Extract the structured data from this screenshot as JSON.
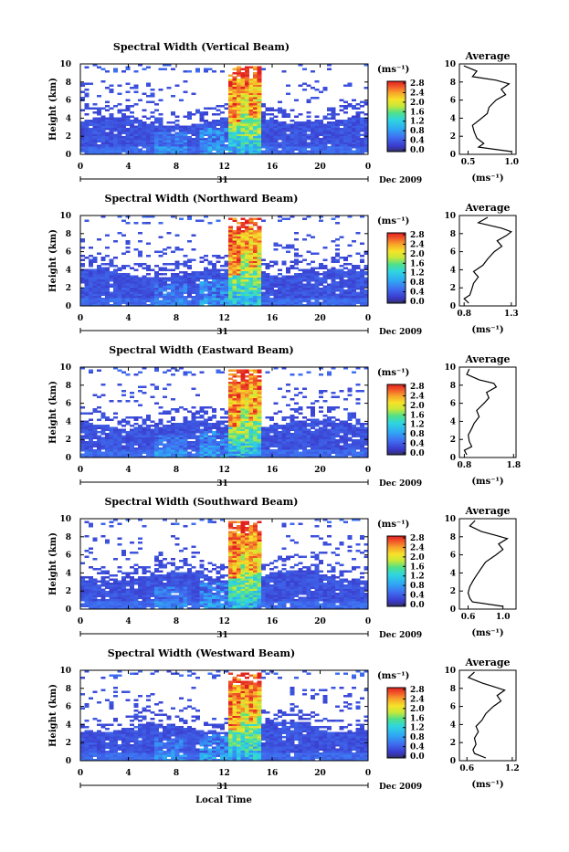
{
  "x_label": "Local Time",
  "y_label": "Height (km)",
  "date_label": "Dec 2009",
  "day_label": "31",
  "colorbar_unit": "(ms⁻¹)",
  "profile_title": "Average",
  "profile_unit": "(ms⁻¹)",
  "colorbar_ticks": [
    "0.0",
    "0.4",
    "0.8",
    "1.2",
    "1.6",
    "2.0",
    "2.4",
    "2.8"
  ],
  "chart_data": [
    {
      "type": "heatmap",
      "title": "Spectral Width (Vertical Beam)",
      "x_ticks": [
        "0",
        "4",
        "8",
        "12",
        "16",
        "20",
        "0"
      ],
      "y_ticks": [
        "0",
        "2",
        "4",
        "6",
        "8",
        "10"
      ],
      "xlim": [
        0,
        24
      ],
      "ylim": [
        0,
        10
      ],
      "zlim": [
        0.0,
        2.8
      ],
      "profile": {
        "type": "line",
        "title": "Average",
        "x_ticks": [
          "0.5",
          "1.0"
        ],
        "xlim": [
          0.4,
          1.05
        ],
        "y_ticks": [
          "0",
          "2",
          "4",
          "6",
          "8",
          "10"
        ],
        "heights": [
          0.3,
          0.8,
          1.2,
          1.8,
          2.5,
          3.2,
          3.8,
          4.5,
          5.2,
          6.0,
          6.6,
          7.2,
          7.8,
          8.2,
          8.6,
          9.2,
          9.8
        ],
        "values": [
          1.0,
          0.62,
          0.68,
          0.6,
          0.57,
          0.55,
          0.63,
          0.72,
          0.74,
          0.82,
          0.93,
          0.88,
          0.97,
          0.82,
          0.55,
          0.6,
          0.45
        ]
      }
    },
    {
      "type": "heatmap",
      "title": "Spectral Width (Northward Beam)",
      "x_ticks": [
        "0",
        "4",
        "8",
        "12",
        "16",
        "20",
        "0"
      ],
      "y_ticks": [
        "0",
        "2",
        "4",
        "6",
        "8",
        "10"
      ],
      "xlim": [
        0,
        24
      ],
      "ylim": [
        0,
        10
      ],
      "zlim": [
        0.0,
        2.8
      ],
      "profile": {
        "type": "line",
        "title": "Average",
        "x_ticks": [
          "0.8",
          "1.3"
        ],
        "xlim": [
          0.75,
          1.35
        ],
        "y_ticks": [
          "0",
          "2",
          "4",
          "6",
          "8",
          "10"
        ],
        "heights": [
          0.3,
          0.8,
          1.2,
          1.8,
          2.5,
          3.2,
          3.8,
          4.5,
          5.2,
          6.0,
          6.6,
          7.2,
          7.8,
          8.2,
          8.6,
          9.2,
          9.8
        ],
        "values": [
          0.85,
          0.8,
          0.86,
          0.88,
          0.9,
          0.95,
          0.9,
          1.0,
          1.05,
          1.12,
          1.2,
          1.15,
          1.25,
          1.3,
          1.2,
          0.95,
          1.05
        ]
      }
    },
    {
      "type": "heatmap",
      "title": "Spectral Width (Eastward Beam)",
      "x_ticks": [
        "0",
        "4",
        "8",
        "12",
        "16",
        "20",
        "0"
      ],
      "y_ticks": [
        "0",
        "2",
        "4",
        "6",
        "8",
        "10"
      ],
      "xlim": [
        0,
        24
      ],
      "ylim": [
        0,
        10
      ],
      "zlim": [
        0.0,
        2.8
      ],
      "profile": {
        "type": "line",
        "title": "Average",
        "x_ticks": [
          "0.8",
          "1.8"
        ],
        "xlim": [
          0.7,
          1.85
        ],
        "y_ticks": [
          "0",
          "2",
          "4",
          "6",
          "8",
          "10"
        ],
        "heights": [
          0.3,
          0.8,
          1.2,
          1.8,
          2.5,
          3.2,
          3.8,
          4.5,
          5.2,
          6.0,
          6.6,
          7.2,
          7.8,
          8.2,
          8.6,
          9.2,
          9.8
        ],
        "values": [
          0.85,
          0.8,
          0.95,
          0.9,
          0.88,
          0.95,
          1.0,
          1.1,
          1.05,
          1.2,
          1.3,
          1.25,
          1.45,
          1.4,
          1.1,
          0.85,
          0.9
        ]
      }
    },
    {
      "type": "heatmap",
      "title": "Spectral Width (Southward Beam)",
      "x_ticks": [
        "0",
        "4",
        "8",
        "12",
        "16",
        "20",
        "0"
      ],
      "y_ticks": [
        "0",
        "2",
        "4",
        "6",
        "8",
        "10"
      ],
      "xlim": [
        0,
        24
      ],
      "ylim": [
        0,
        10
      ],
      "zlim": [
        0.0,
        2.8
      ],
      "profile": {
        "type": "line",
        "title": "Average",
        "x_ticks": [
          "0.6",
          "1.0"
        ],
        "xlim": [
          0.5,
          1.15
        ],
        "y_ticks": [
          "0",
          "2",
          "4",
          "6",
          "8",
          "10"
        ],
        "heights": [
          0.3,
          0.8,
          1.2,
          1.8,
          2.5,
          3.2,
          3.8,
          4.5,
          5.2,
          6.0,
          6.6,
          7.2,
          7.8,
          8.2,
          8.6,
          9.2,
          9.8
        ],
        "values": [
          1.0,
          0.65,
          0.62,
          0.6,
          0.62,
          0.66,
          0.7,
          0.75,
          0.8,
          0.92,
          1.0,
          0.95,
          1.05,
          0.9,
          0.75,
          0.62,
          0.68
        ]
      }
    },
    {
      "type": "heatmap",
      "title": "Spectral Width (Westward Beam)",
      "x_ticks": [
        "0",
        "4",
        "8",
        "12",
        "16",
        "20",
        "0"
      ],
      "y_ticks": [
        "0",
        "2",
        "4",
        "6",
        "8",
        "10"
      ],
      "xlim": [
        0,
        24
      ],
      "ylim": [
        0,
        10
      ],
      "zlim": [
        0.0,
        2.8
      ],
      "profile": {
        "type": "line",
        "title": "Average",
        "x_ticks": [
          "0.6",
          "1.2"
        ],
        "xlim": [
          0.5,
          1.25
        ],
        "y_ticks": [
          "0",
          "2",
          "4",
          "6",
          "8",
          "10"
        ],
        "heights": [
          0.3,
          0.8,
          1.2,
          1.8,
          2.5,
          3.2,
          3.8,
          4.5,
          5.2,
          6.0,
          6.6,
          7.2,
          7.8,
          8.2,
          8.6,
          9.2,
          9.8
        ],
        "values": [
          0.85,
          0.7,
          0.68,
          0.72,
          0.7,
          0.75,
          0.72,
          0.8,
          0.85,
          0.95,
          1.05,
          1.0,
          1.1,
          0.95,
          0.8,
          0.62,
          0.7
        ]
      }
    }
  ]
}
